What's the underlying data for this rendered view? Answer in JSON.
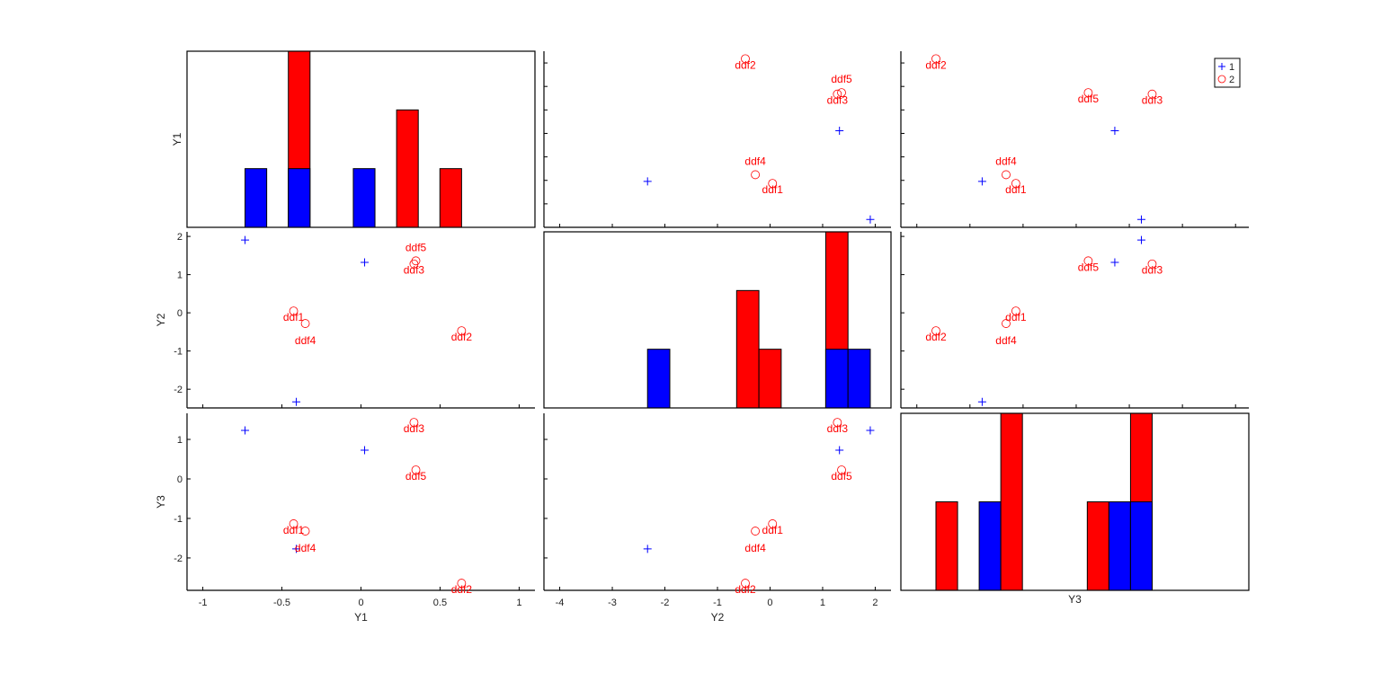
{
  "chart_data": {
    "type": "scatter-matrix",
    "variables": [
      "Y1",
      "Y2",
      "Y3"
    ],
    "axis_labels": {
      "x": [
        "Y1",
        "Y2",
        "Y3"
      ],
      "y": [
        "Y1",
        "Y2",
        "Y3"
      ]
    },
    "limits": {
      "Y1": [
        -1.1,
        1.1
      ],
      "Y2": [
        -4.3,
        2.3
      ],
      "Y3": [
        -3.3,
        3.25
      ]
    },
    "row_limits": {
      "Y1": [
        -0.8,
        0.7
      ],
      "Y2": [
        -2.49,
        2.12
      ],
      "Y3": [
        -2.82,
        1.66
      ]
    },
    "x_ticks": {
      "Y1": [
        -1,
        -0.5,
        0,
        0.5,
        1
      ],
      "Y2": [
        -4,
        -3,
        -2,
        -1,
        0,
        1,
        2
      ],
      "Y3": [
        -3,
        -2,
        -1,
        0,
        1,
        2,
        3
      ]
    },
    "x_tick_labels_shown": {
      "Y1": true,
      "Y2": true,
      "Y3": false
    },
    "y_ticks": {
      "Y1": [
        -0.6,
        -0.4,
        -0.2,
        0,
        0.2,
        0.4,
        0.6
      ],
      "Y2": [
        -2,
        -1,
        0,
        1,
        2
      ],
      "Y3": [
        -2,
        -1,
        0,
        1
      ]
    },
    "y_tick_labels_shown": {
      "Y1": false,
      "Y2": true,
      "Y3": true
    },
    "diagonal": "stacked histogram",
    "histogram_bins": 10,
    "groups": [
      {
        "name": "1",
        "marker": "+",
        "color": "#0000ff",
        "points": [
          {
            "Y1": -0.733,
            "Y2": 1.906,
            "Y3": 1.227
          },
          {
            "Y1": 0.023,
            "Y2": 1.32,
            "Y3": 0.727
          },
          {
            "Y1": -0.409,
            "Y2": -2.33,
            "Y3": -1.77
          }
        ]
      },
      {
        "name": "2",
        "marker": "o",
        "color": "#ff0000",
        "points": [
          {
            "label": "ddf1",
            "Y1": -0.426,
            "Y2": 0.047,
            "Y3": -1.136
          },
          {
            "label": "ddf2",
            "Y1": 0.636,
            "Y2": -0.47,
            "Y3": -2.64
          },
          {
            "label": "ddf3",
            "Y1": 0.335,
            "Y2": 1.28,
            "Y3": 1.43
          },
          {
            "label": "ddf4",
            "Y1": -0.352,
            "Y2": -0.28,
            "Y3": -1.32
          },
          {
            "label": "ddf5",
            "Y1": 0.347,
            "Y2": 1.36,
            "Y3": 0.227
          }
        ]
      }
    ],
    "legend": {
      "position": "top-right",
      "entries": [
        "1",
        "2"
      ]
    },
    "grid": false
  }
}
